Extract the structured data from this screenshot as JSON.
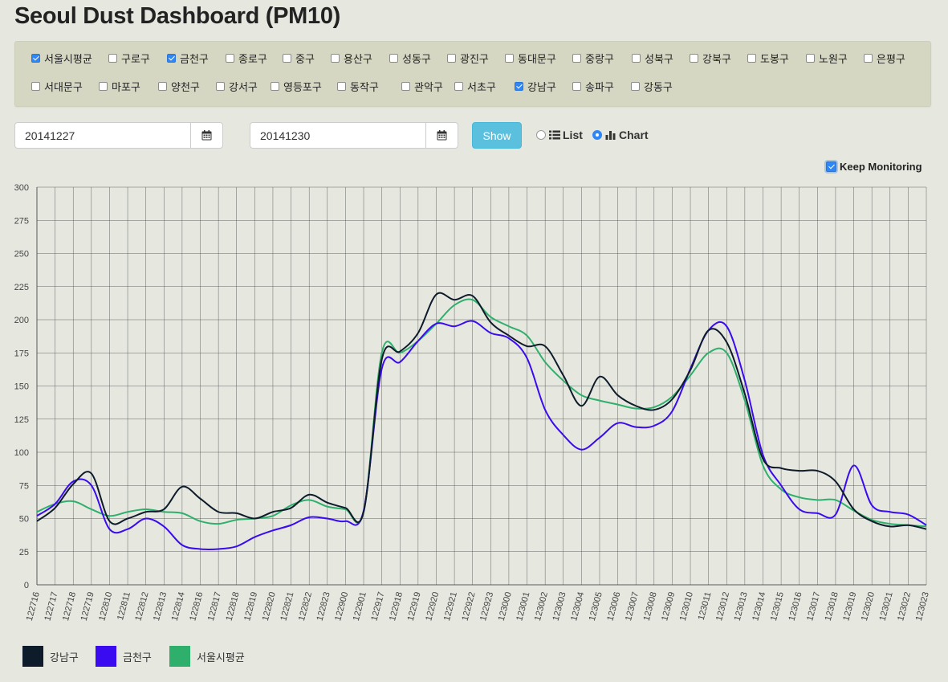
{
  "header": {
    "title": "Seoul Dust Dashboard (PM10)"
  },
  "districts": [
    {
      "label": "서울시평균",
      "checked": true
    },
    {
      "label": "구로구",
      "checked": false
    },
    {
      "label": "금천구",
      "checked": true
    },
    {
      "label": "종로구",
      "checked": false
    },
    {
      "label": "중구",
      "checked": false
    },
    {
      "label": "용산구",
      "checked": false
    },
    {
      "label": "성동구",
      "checked": false
    },
    {
      "label": "광진구",
      "checked": false
    },
    {
      "label": "동대문구",
      "checked": false
    },
    {
      "label": "중랑구",
      "checked": false
    },
    {
      "label": "성북구",
      "checked": false
    },
    {
      "label": "강북구",
      "checked": false
    },
    {
      "label": "도봉구",
      "checked": false
    },
    {
      "label": "노원구",
      "checked": false
    },
    {
      "label": "은평구",
      "checked": false
    },
    {
      "label": "서대문구",
      "checked": false
    },
    {
      "label": "마포구",
      "checked": false
    },
    {
      "label": "양천구",
      "checked": false
    },
    {
      "label": "강서구",
      "checked": false
    },
    {
      "label": "영등포구",
      "checked": false
    },
    {
      "label": "동작구",
      "checked": false
    },
    {
      "label": "관악구",
      "checked": false
    },
    {
      "label": "서초구",
      "checked": false
    },
    {
      "label": "강남구",
      "checked": true
    },
    {
      "label": "송파구",
      "checked": false
    },
    {
      "label": "강동구",
      "checked": false
    }
  ],
  "controls": {
    "start_date": "20141227",
    "end_date": "20141230",
    "show_label": "Show",
    "view_list_label": "List",
    "view_chart_label": "Chart",
    "view_selected": "Chart",
    "keep_monitoring_label": "Keep Monitoring",
    "keep_monitoring_checked": true
  },
  "chart_data": {
    "type": "line",
    "ylim": [
      0,
      300
    ],
    "yticks": [
      0,
      25,
      50,
      75,
      100,
      125,
      150,
      175,
      200,
      225,
      250,
      275,
      300
    ],
    "ytick_labels": [
      "0",
      "25",
      "50",
      "75",
      "100",
      "125",
      "150",
      "175",
      "200",
      "225",
      "250",
      "275",
      "300"
    ],
    "grid": true,
    "x": [
      "122716",
      "122717",
      "122718",
      "122719",
      "122810",
      "122811",
      "122812",
      "122813",
      "122814",
      "122816",
      "122817",
      "122818",
      "122819",
      "122820",
      "122821",
      "122822",
      "122823",
      "122900",
      "122901",
      "122917",
      "122918",
      "122919",
      "122920",
      "122921",
      "122922",
      "122923",
      "123000",
      "123001",
      "123002",
      "123003",
      "123004",
      "123005",
      "123006",
      "123007",
      "123008",
      "123009",
      "123010",
      "123011",
      "123012",
      "123013",
      "123014",
      "123015",
      "123016",
      "123017",
      "123018",
      "123019",
      "123020",
      "123021",
      "123022",
      "123023"
    ],
    "series": [
      {
        "name": "강남구",
        "color": "#0d1b2a",
        "values": [
          48,
          58,
          76,
          84,
          48,
          50,
          55,
          57,
          74,
          65,
          55,
          54,
          50,
          55,
          58,
          68,
          62,
          58,
          55,
          170,
          176,
          190,
          219,
          215,
          218,
          198,
          188,
          180,
          180,
          158,
          135,
          157,
          143,
          135,
          132,
          140,
          162,
          192,
          183,
          144,
          95,
          88,
          86,
          86,
          78,
          57,
          48,
          44,
          45,
          42
        ]
      },
      {
        "name": "금천구",
        "color": "#3a0af0",
        "values": [
          52,
          61,
          78,
          75,
          42,
          42,
          50,
          44,
          30,
          27,
          27,
          29,
          36,
          41,
          45,
          51,
          50,
          48,
          56,
          163,
          168,
          184,
          197,
          195,
          199,
          190,
          186,
          171,
          132,
          113,
          102,
          111,
          122,
          119,
          120,
          131,
          163,
          192,
          195,
          154,
          98,
          75,
          57,
          54,
          53,
          90,
          60,
          55,
          53,
          45
        ]
      },
      {
        "name": "서울시평균",
        "color": "#2eaf6b",
        "values": [
          55,
          61,
          63,
          57,
          52,
          55,
          57,
          55,
          54,
          48,
          46,
          49,
          50,
          52,
          60,
          64,
          59,
          57,
          55,
          175,
          175,
          184,
          197,
          211,
          215,
          202,
          195,
          188,
          168,
          154,
          143,
          139,
          136,
          133,
          134,
          142,
          158,
          175,
          175,
          139,
          90,
          72,
          66,
          64,
          64,
          56,
          49,
          46,
          45,
          44
        ]
      }
    ]
  }
}
